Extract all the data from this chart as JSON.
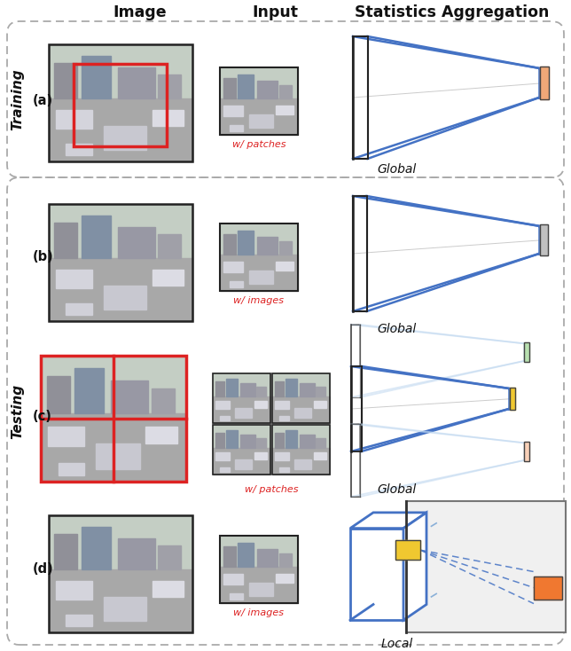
{
  "title_image": "Image",
  "title_input": "Input",
  "title_stats": "Statistics Aggregation",
  "labels": [
    "(a)",
    "(b)",
    "(c)",
    "(d)"
  ],
  "captions_input": [
    "w/ patches",
    "w/ images",
    "w/ patches",
    "w/ images"
  ],
  "captions_stats": [
    "Global",
    "Global",
    "Global",
    "Local"
  ],
  "section_train": "Training",
  "section_test": "Testing",
  "bg_color": "#ffffff",
  "blue": "#4472c4",
  "light_blue": "#8ab0d8",
  "very_light_blue": "#c0d8f0",
  "black": "#222222",
  "orange_box": "#f0a878",
  "orange2_box": "#f07830",
  "yellow_box": "#f0c830",
  "green_box": "#b8e0b0",
  "peach_box": "#f8d0b8",
  "gray_box": "#c0c0c0",
  "red": "#dd2222",
  "dashed_color": "#999999"
}
